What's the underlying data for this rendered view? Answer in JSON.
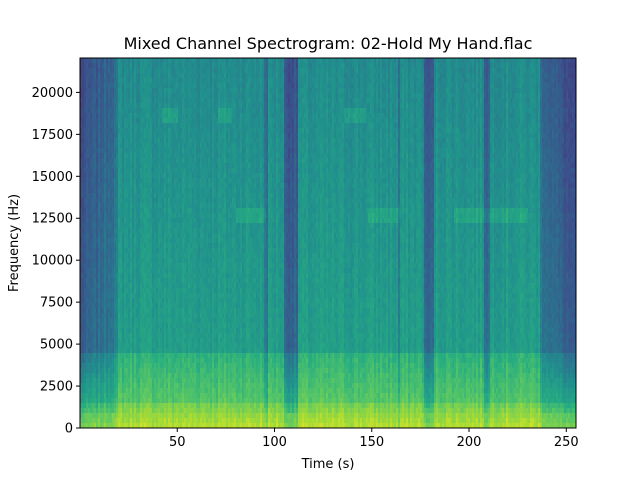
{
  "chart_data": {
    "type": "heatmap",
    "title": "Mixed Channel Spectrogram: 02-Hold My Hand.flac",
    "xlabel": "Time (s)",
    "ylabel": "Frequency (Hz)",
    "xlim": [
      0,
      255
    ],
    "ylim": [
      0,
      22050
    ],
    "x_ticks": [
      50,
      100,
      150,
      200,
      250
    ],
    "y_ticks": [
      0,
      2500,
      5000,
      7500,
      10000,
      12500,
      15000,
      17500,
      20000
    ],
    "colormap": "viridis",
    "grid": false,
    "legend": "none",
    "dark_time_bands": [
      {
        "from": 0,
        "to": 20,
        "strength": 0.55
      },
      {
        "from": 95,
        "to": 97,
        "strength": 0.25
      },
      {
        "from": 105,
        "to": 112,
        "strength": 0.45
      },
      {
        "from": 163,
        "to": 165,
        "strength": 0.25
      },
      {
        "from": 177,
        "to": 182,
        "strength": 0.45
      },
      {
        "from": 208,
        "to": 211,
        "strength": 0.35
      },
      {
        "from": 236,
        "to": 255,
        "strength": 0.6
      }
    ],
    "bright_patches": [
      {
        "from": 42,
        "to": 50,
        "fmin": 18200,
        "fmax": 19200
      },
      {
        "from": 71,
        "to": 78,
        "fmin": 18200,
        "fmax": 19200
      },
      {
        "from": 136,
        "to": 147,
        "fmin": 18200,
        "fmax": 19200
      },
      {
        "from": 80,
        "to": 96,
        "fmin": 12200,
        "fmax": 13200
      },
      {
        "from": 148,
        "to": 165,
        "fmin": 12200,
        "fmax": 13200
      },
      {
        "from": 192,
        "to": 230,
        "fmin": 12200,
        "fmax": 13200
      }
    ]
  }
}
